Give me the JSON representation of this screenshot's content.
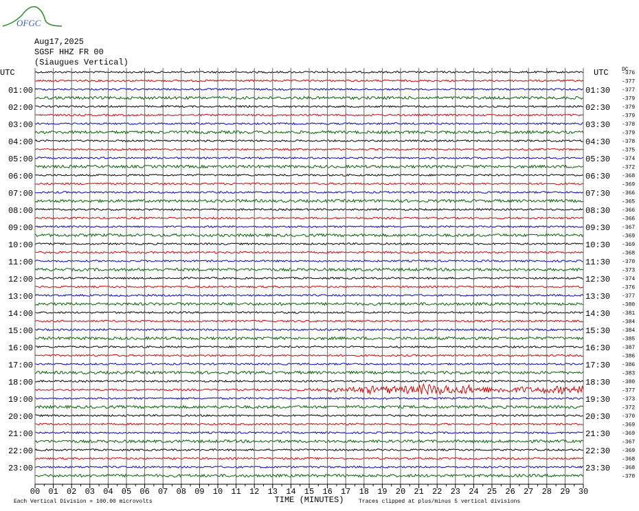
{
  "logo": "OFGC",
  "chart_data": {
    "type": "helicorder",
    "title_lines": [
      "Aug17,2025",
      "SGSF HHZ FR 00",
      "(Siaugues Vertical)"
    ],
    "left_header": "UTC",
    "right_header": "UTC",
    "dc_header": "DC",
    "left_labels": [
      "01:00",
      "02:00",
      "03:00",
      "04:00",
      "05:00",
      "06:00",
      "07:00",
      "08:00",
      "09:00",
      "10:00",
      "11:00",
      "12:00",
      "13:00",
      "14:00",
      "15:00",
      "16:00",
      "17:00",
      "18:00",
      "19:00",
      "20:00",
      "21:00",
      "22:00",
      "23:00"
    ],
    "right_labels": [
      "01:30",
      "02:30",
      "03:30",
      "04:30",
      "05:30",
      "06:30",
      "07:30",
      "08:30",
      "09:30",
      "10:30",
      "11:30",
      "12:30",
      "13:30",
      "14:30",
      "15:30",
      "16:30",
      "17:30",
      "18:30",
      "19:30",
      "20:30",
      "21:30",
      "22:30",
      "23:30"
    ],
    "trace_colors": [
      "#000000",
      "#d00000",
      "#0000c0",
      "#006000"
    ],
    "dc_values": [
      -376,
      -377,
      -377,
      -379,
      -379,
      -379,
      -378,
      -379,
      -378,
      -375,
      -374,
      -372,
      -368,
      -369,
      -366,
      -365,
      -366,
      -366,
      -367,
      -369,
      -369,
      -368,
      -370,
      -373,
      -374,
      -376,
      -377,
      -380,
      -381,
      -384,
      -384,
      -385,
      -387,
      -386,
      -386,
      -383,
      -380,
      -377,
      -373,
      -372,
      -370,
      -369,
      -369,
      -367,
      -369,
      -368,
      -368,
      -370
    ],
    "xlim": [
      0,
      30
    ],
    "xticks": [
      {
        "value": 0,
        "label": "00"
      },
      {
        "value": 1,
        "label": "01"
      },
      {
        "value": 2,
        "label": "02"
      },
      {
        "value": 3,
        "label": "03"
      },
      {
        "value": 4,
        "label": "04"
      },
      {
        "value": 5,
        "label": "05"
      },
      {
        "value": 6,
        "label": "06"
      },
      {
        "value": 7,
        "label": "07"
      },
      {
        "value": 8,
        "label": "08"
      },
      {
        "value": 9,
        "label": "09"
      },
      10,
      11,
      12,
      13,
      14,
      15,
      16,
      17,
      18,
      19,
      20,
      21,
      22,
      23,
      24,
      25,
      26,
      27,
      28,
      29,
      30
    ],
    "xlabel": "TIME (MINUTES)",
    "footer_left": "Each Vertical Division =  100.00 microvolts",
    "footer_right": "Traces clipped at plus/minus 5 vertical divisions"
  }
}
